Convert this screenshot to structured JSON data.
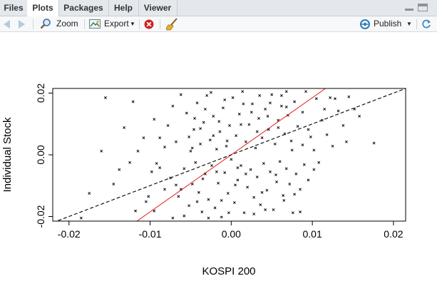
{
  "tabs": {
    "files": "Files",
    "plots": "Plots",
    "packages": "Packages",
    "help": "Help",
    "viewer": "Viewer"
  },
  "toolbar": {
    "zoom": "Zoom",
    "export": "Export",
    "publish": "Publish"
  },
  "icons": {
    "back": "arrow-left-icon",
    "forward": "arrow-right-icon",
    "zoom": "magnifier-icon",
    "export": "export-image-icon",
    "remove": "remove-plot-icon",
    "clear": "broom-icon",
    "publish": "publish-icon",
    "refresh": "refresh-icon"
  },
  "colors": {
    "points": "#000000",
    "regression_line": "#e02020",
    "reference_line": "#000000"
  },
  "chart_data": {
    "type": "scatter",
    "xlabel": "KOSPI 200",
    "ylabel": "Individual Stock",
    "xlim": [
      -0.022,
      0.0215
    ],
    "ylim": [
      -0.0215,
      0.0215
    ],
    "x_ticks": [
      -0.02,
      -0.01,
      0.0,
      0.01,
      0.02
    ],
    "x_tick_labels": [
      "-0.02",
      "-0.01",
      "0.00",
      "0.01",
      "0.02"
    ],
    "y_ticks": [
      -0.02,
      0.0,
      0.02
    ],
    "y_tick_labels": [
      "-0.02",
      "0.00",
      "0.02"
    ],
    "marker": "x",
    "grid": false,
    "lines": [
      {
        "style": "solid",
        "color": "#e02020",
        "intercept": 0.0,
        "slope": 1.85
      },
      {
        "style": "dashed",
        "color": "#000000",
        "intercept": 0.0,
        "slope": 1.0
      }
    ],
    "points": [
      [
        -0.0155,
        0.0185
      ],
      [
        -0.0185,
        -0.0205
      ],
      [
        -0.0175,
        -0.0125
      ],
      [
        -0.016,
        0.0012
      ],
      [
        -0.0145,
        -0.0095
      ],
      [
        -0.0132,
        0.0088
      ],
      [
        -0.0125,
        -0.0025
      ],
      [
        -0.0121,
        0.0172
      ],
      [
        -0.0118,
        -0.0182
      ],
      [
        -0.0105,
        -0.0152
      ],
      [
        -0.0098,
        -0.0055
      ],
      [
        -0.0095,
        0.0115
      ],
      [
        -0.0092,
        -0.0028
      ],
      [
        -0.0088,
        0.0055
      ],
      [
        -0.0082,
        -0.0112
      ],
      [
        -0.0078,
        0.0095
      ],
      [
        -0.0075,
        -0.0075
      ],
      [
        -0.0072,
        -0.0205
      ],
      [
        -0.0068,
        0.0042
      ],
      [
        -0.0065,
        -0.0135
      ],
      [
        -0.0062,
        0.0195
      ],
      [
        -0.0058,
        -0.0045
      ],
      [
        -0.0055,
        0.0135
      ],
      [
        -0.0052,
        -0.0165
      ],
      [
        -0.005,
        0.0012
      ],
      [
        -0.0048,
        -0.0095
      ],
      [
        -0.0046,
        0.0082
      ],
      [
        -0.0044,
        -0.0025
      ],
      [
        -0.0042,
        0.0168
      ],
      [
        -0.004,
        -0.0122
      ],
      [
        -0.0038,
        0.0035
      ],
      [
        -0.0036,
        -0.0185
      ],
      [
        -0.0034,
        0.0105
      ],
      [
        -0.0032,
        -0.0062
      ],
      [
        -0.003,
        0.0192
      ],
      [
        -0.0028,
        -0.0145
      ],
      [
        -0.0026,
        0.0048
      ],
      [
        -0.0024,
        -0.0035
      ],
      [
        -0.0022,
        0.0125
      ],
      [
        -0.002,
        -0.0172
      ],
      [
        -0.0018,
        0.0018
      ],
      [
        -0.0016,
        -0.0092
      ],
      [
        -0.0014,
        0.0075
      ],
      [
        -0.0012,
        -0.0202
      ],
      [
        -0.001,
        0.0152
      ],
      [
        -0.0008,
        -0.0058
      ],
      [
        -0.0006,
        0.0028
      ],
      [
        -0.0004,
        -0.0125
      ],
      [
        -0.0002,
        0.0095
      ],
      [
        0.0,
        -0.0015
      ],
      [
        0.0002,
        0.0185
      ],
      [
        0.0004,
        -0.0155
      ],
      [
        0.0006,
        0.0062
      ],
      [
        0.0008,
        -0.0082
      ],
      [
        0.001,
        0.0132
      ],
      [
        0.0012,
        -0.0035
      ],
      [
        0.0014,
        0.0205
      ],
      [
        0.0016,
        -0.0188
      ],
      [
        0.0018,
        0.0042
      ],
      [
        0.002,
        -0.0105
      ],
      [
        0.0022,
        0.0098
      ],
      [
        0.0024,
        -0.0048
      ],
      [
        0.0026,
        0.0165
      ],
      [
        0.0028,
        -0.0138
      ],
      [
        0.003,
        0.0022
      ],
      [
        0.0032,
        -0.0072
      ],
      [
        0.0034,
        0.0118
      ],
      [
        0.0036,
        -0.0162
      ],
      [
        0.0038,
        0.0055
      ],
      [
        0.004,
        -0.0028
      ],
      [
        0.0042,
        0.0148
      ],
      [
        0.0044,
        -0.0115
      ],
      [
        0.0046,
        0.0082
      ],
      [
        0.0048,
        -0.0055
      ],
      [
        0.005,
        0.0195
      ],
      [
        0.0052,
        -0.0178
      ],
      [
        0.0054,
        0.0035
      ],
      [
        0.0056,
        -0.0088
      ],
      [
        0.0058,
        0.0112
      ],
      [
        0.006,
        -0.0022
      ],
      [
        0.0062,
        0.0158
      ],
      [
        0.0064,
        -0.0132
      ],
      [
        0.0066,
        0.0068
      ],
      [
        0.0068,
        -0.0045
      ],
      [
        0.007,
        0.0128
      ],
      [
        0.0072,
        -0.0095
      ],
      [
        0.0074,
        0.0045
      ],
      [
        0.0076,
        -0.0188
      ],
      [
        0.0078,
        0.0172
      ],
      [
        0.008,
        -0.0062
      ],
      [
        0.0082,
        0.0092
      ],
      [
        0.0085,
        -0.0112
      ],
      [
        0.0088,
        0.0138
      ],
      [
        0.009,
        -0.0032
      ],
      [
        0.0092,
        0.0205
      ],
      [
        0.0095,
        -0.0082
      ],
      [
        0.0098,
        0.0058
      ],
      [
        0.0102,
        0.0015
      ],
      [
        0.0105,
        0.0182
      ],
      [
        0.0108,
        -0.0025
      ],
      [
        0.0112,
        0.0112
      ],
      [
        0.0118,
        0.0065
      ],
      [
        0.0122,
        0.0185
      ],
      [
        0.0125,
        0.0028
      ],
      [
        0.0132,
        0.0142
      ],
      [
        0.0138,
        0.0095
      ],
      [
        0.0145,
        0.0188
      ],
      [
        0.0152,
        0.0148
      ],
      [
        0.0176,
        0.0038
      ],
      [
        0.0158,
        0.0125
      ],
      [
        0.0128,
        0.0182
      ],
      [
        0.0142,
        0.0042
      ],
      [
        0.0115,
        0.0148
      ],
      [
        0.0068,
        0.0205
      ],
      [
        0.0045,
        0.0125
      ],
      [
        -0.0025,
        0.0202
      ],
      [
        -0.0052,
        0.0058
      ],
      [
        -0.0068,
        -0.0098
      ],
      [
        -0.0082,
        0.0025
      ],
      [
        -0.0095,
        -0.0182
      ],
      [
        -0.0108,
        0.0055
      ],
      [
        -0.0138,
        -0.0048
      ],
      [
        -0.0102,
        -0.0135
      ],
      [
        -0.0058,
        -0.0198
      ],
      [
        -0.0035,
        -0.0078
      ],
      [
        -0.0015,
        0.0108
      ],
      [
        0.0005,
        -0.0098
      ],
      [
        0.0025,
        0.0138
      ],
      [
        0.0035,
        0.0192
      ],
      [
        0.0065,
        -0.0148
      ],
      [
        0.0085,
        -0.0185
      ],
      [
        0.0095,
        0.0082
      ],
      [
        -0.0045,
        0.0118
      ],
      [
        -0.0072,
        0.0158
      ],
      [
        -0.0028,
        -0.0205
      ],
      [
        0.0015,
        0.0165
      ],
      [
        0.0055,
        -0.0065
      ],
      [
        0.0075,
        0.0015
      ],
      [
        -0.0012,
        -0.0148
      ],
      [
        -0.0005,
        0.0045
      ],
      [
        0.0018,
        -0.0062
      ],
      [
        0.0038,
        -0.0122
      ],
      [
        -0.0022,
        0.0062
      ],
      [
        -0.0042,
        -0.0152
      ],
      [
        0.0058,
        0.0088
      ],
      [
        0.0078,
        -0.0128
      ],
      [
        0.0102,
        -0.0048
      ],
      [
        -0.0088,
        -0.0042
      ],
      [
        -0.0115,
        0.0012
      ],
      [
        0.0028,
        -0.0192
      ],
      [
        0.0048,
        0.0168
      ],
      [
        -0.0032,
        0.0148
      ],
      [
        -0.0008,
        0.0178
      ],
      [
        0.0012,
        0.0098
      ],
      [
        0.0032,
        0.0075
      ],
      [
        -0.0062,
        -0.0112
      ],
      [
        -0.0048,
        0.0022
      ],
      [
        0.0068,
        0.0155
      ],
      [
        0.0088,
        0.0032
      ],
      [
        -0.0018,
        -0.0055
      ],
      [
        0.0008,
        -0.0042
      ],
      [
        -0.0003,
        -0.0188
      ],
      [
        0.0042,
        -0.0178
      ],
      [
        0.0062,
        0.0192
      ],
      [
        -0.0038,
        0.0085
      ]
    ]
  }
}
